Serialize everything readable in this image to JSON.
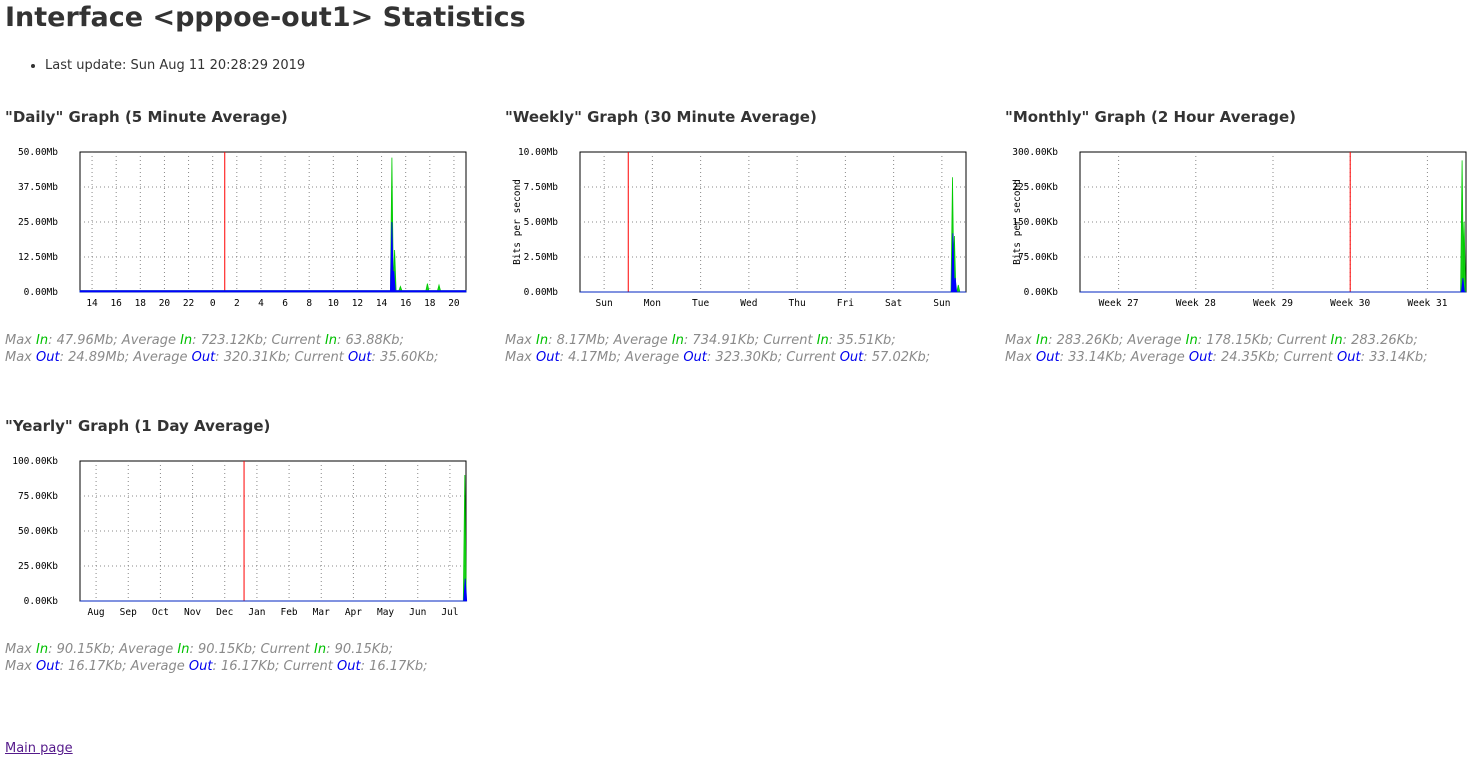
{
  "page": {
    "title": "Interface <pppoe-out1> Statistics",
    "last_update": "Last update: Sun Aug 11 20:28:29 2019",
    "main_link": "Main page"
  },
  "colors": {
    "in": "#00cc00",
    "out": "#0000ff",
    "now_marker": "#ff0000",
    "grid": "#888888"
  },
  "chart_data": [
    {
      "type": "area",
      "title": "\"Daily\" Graph (5 Minute Average)",
      "ylabel": "",
      "yticks": [
        "0.00Mb",
        "12.50Mb",
        "25.00Mb",
        "37.50Mb",
        "50.00Mb"
      ],
      "ylim": [
        0,
        50
      ],
      "xticks": [
        "14",
        "16",
        "18",
        "20",
        "22",
        "0",
        "2",
        "4",
        "6",
        "8",
        "10",
        "12",
        "14",
        "16",
        "18",
        "20"
      ],
      "now_marker_index": 5.5,
      "series": [
        {
          "name": "In",
          "spikes": [
            [
              0.808,
              0.96
            ],
            [
              0.815,
              0.3
            ],
            [
              0.83,
              0.04
            ],
            [
              0.9,
              0.06
            ],
            [
              0.93,
              0.05
            ]
          ],
          "floor": 0.01
        },
        {
          "name": "Out",
          "spikes": [
            [
              0.808,
              0.5
            ],
            [
              0.813,
              0.15
            ]
          ],
          "floor": 0.01
        }
      ],
      "stats": {
        "in": {
          "max": "47.96Mb",
          "average": "723.12Kb",
          "current": "63.88Kb"
        },
        "out": {
          "max": "24.89Mb",
          "average": "320.31Kb",
          "current": "35.60Kb"
        }
      }
    },
    {
      "type": "area",
      "title": "\"Weekly\" Graph (30 Minute Average)",
      "ylabel": "Bits per second",
      "yticks": [
        "0.00Mb",
        "2.50Mb",
        "5.00Mb",
        "7.50Mb",
        "10.00Mb"
      ],
      "ylim": [
        0,
        10
      ],
      "xticks": [
        "Sun",
        "Mon",
        "Tue",
        "Wed",
        "Thu",
        "Fri",
        "Sat",
        "Sun"
      ],
      "now_marker_index": 0.5,
      "series": [
        {
          "name": "In",
          "spikes": [
            [
              0.965,
              0.82
            ],
            [
              0.97,
              0.4
            ],
            [
              0.98,
              0.05
            ]
          ],
          "floor": 0.0
        },
        {
          "name": "Out",
          "spikes": [
            [
              0.966,
              0.42
            ],
            [
              0.972,
              0.1
            ]
          ],
          "floor": 0.0
        }
      ],
      "stats": {
        "in": {
          "max": "8.17Mb",
          "average": "734.91Kb",
          "current": "35.51Kb"
        },
        "out": {
          "max": "4.17Mb",
          "average": "323.30Kb",
          "current": "57.02Kb"
        }
      }
    },
    {
      "type": "area",
      "title": "\"Monthly\" Graph (2 Hour Average)",
      "ylabel": "Bits per second",
      "yticks": [
        "0.00Kb",
        "75.00Kb",
        "150.00Kb",
        "225.00Kb",
        "300.00Kb"
      ],
      "ylim": [
        0,
        300
      ],
      "xticks": [
        "Week 27",
        "Week 28",
        "Week 29",
        "Week 30",
        "Week 31"
      ],
      "now_marker_index": 3.0,
      "series": [
        {
          "name": "In",
          "spikes": [
            [
              0.99,
              0.94
            ],
            [
              0.995,
              0.5
            ]
          ],
          "floor": 0.0
        },
        {
          "name": "Out",
          "spikes": [
            [
              0.992,
              0.1
            ]
          ],
          "floor": 0.0
        }
      ],
      "stats": {
        "in": {
          "max": "283.26Kb",
          "average": "178.15Kb",
          "current": "283.26Kb"
        },
        "out": {
          "max": "33.14Kb",
          "average": "24.35Kb",
          "current": "33.14Kb"
        }
      }
    },
    {
      "type": "area",
      "title": "\"Yearly\" Graph (1 Day Average)",
      "ylabel": "",
      "yticks": [
        "0.00Kb",
        "25.00Kb",
        "50.00Kb",
        "75.00Kb",
        "100.00Kb"
      ],
      "ylim": [
        0,
        100
      ],
      "xticks": [
        "Aug",
        "Sep",
        "Oct",
        "Nov",
        "Dec",
        "Jan",
        "Feb",
        "Mar",
        "Apr",
        "May",
        "Jun",
        "Jul"
      ],
      "now_marker_index": 4.6,
      "series": [
        {
          "name": "In",
          "spikes": [
            [
              0.997,
              0.9
            ]
          ],
          "floor": 0.0
        },
        {
          "name": "Out",
          "spikes": [
            [
              0.998,
              0.16
            ]
          ],
          "floor": 0.0
        }
      ],
      "stats": {
        "in": {
          "max": "90.15Kb",
          "average": "90.15Kb",
          "current": "90.15Kb"
        },
        "out": {
          "max": "16.17Kb",
          "average": "16.17Kb",
          "current": "16.17Kb"
        }
      }
    }
  ]
}
